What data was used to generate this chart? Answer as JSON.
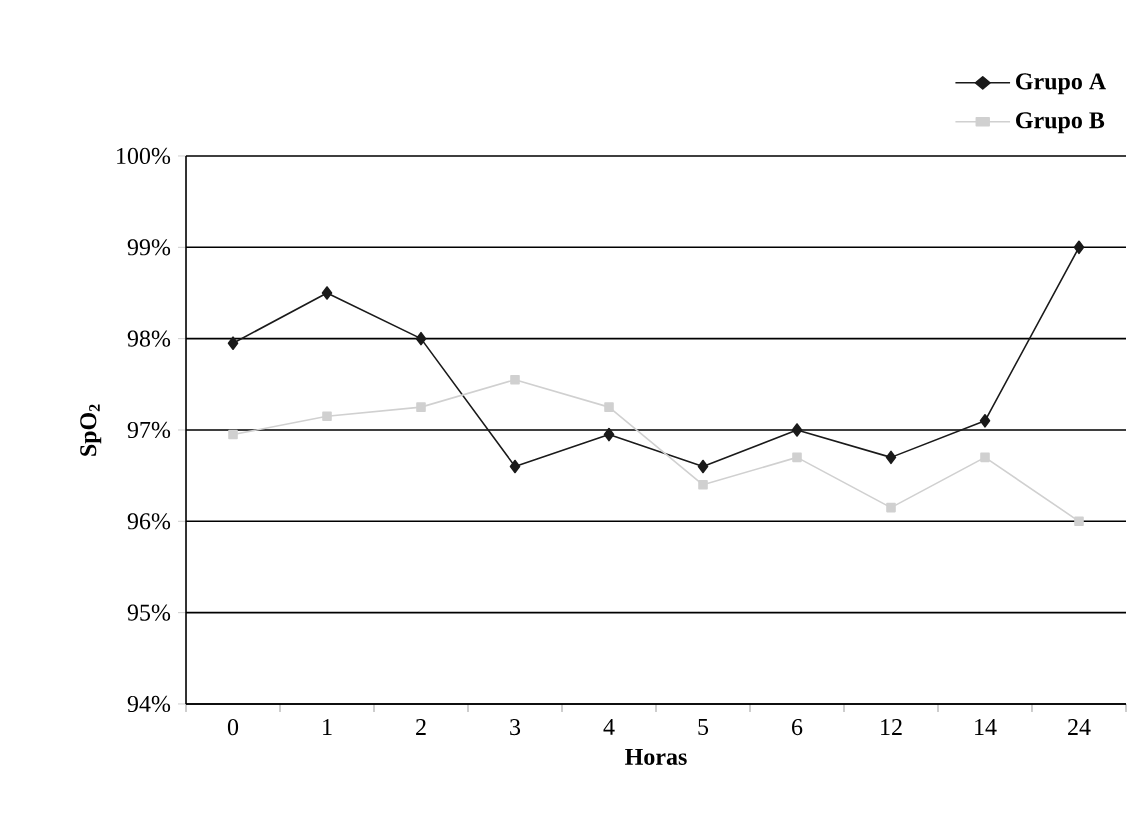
{
  "chart_data": {
    "type": "line",
    "xlabel": "Horas",
    "ylabel": "SpO$_{2}$",
    "categories": [
      "0",
      "1",
      "2",
      "3",
      "4",
      "5",
      "6",
      "12",
      "14",
      "24"
    ],
    "series": [
      {
        "name": "Grupo A",
        "color": "#1a1a1a",
        "marker": "diamond",
        "values": [
          97.95,
          98.5,
          98.0,
          96.6,
          96.95,
          96.6,
          97.0,
          96.7,
          97.1,
          99.0
        ]
      },
      {
        "name": "Grupo B",
        "color": "#d0d0d0",
        "marker": "square",
        "values": [
          96.95,
          97.15,
          97.25,
          97.55,
          97.25,
          96.4,
          96.7,
          96.15,
          96.7,
          96.0
        ]
      }
    ],
    "ylim": [
      94,
      100
    ],
    "yticks": [
      {
        "value": 94,
        "label": "94%"
      },
      {
        "value": 95,
        "label": "95%"
      },
      {
        "value": 96,
        "label": "96%"
      },
      {
        "value": 97,
        "label": "97%"
      },
      {
        "value": 98,
        "label": "98%"
      },
      {
        "value": 99,
        "label": "99%"
      },
      {
        "value": 100,
        "label": "100%"
      }
    ],
    "grid": "y",
    "legend": "top right",
    "line_style": "solid"
  }
}
